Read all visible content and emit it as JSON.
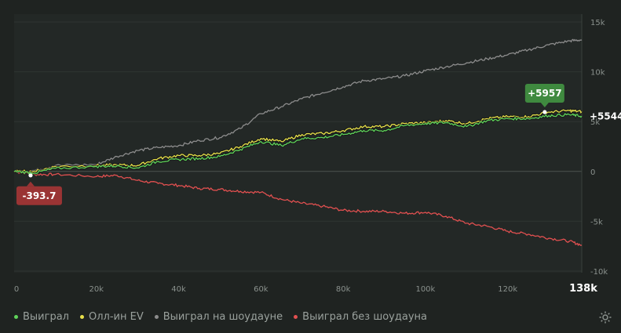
{
  "chart_data": {
    "type": "line",
    "x_ticks": [
      "0",
      "20k",
      "40k",
      "60k",
      "80k",
      "100k",
      "120k",
      "138k"
    ],
    "y_ticks": [
      "15k",
      "10k",
      "5k",
      "0",
      "-5k",
      "-10k"
    ],
    "xlim": [
      0,
      138000
    ],
    "ylim": [
      -10000,
      15000
    ],
    "grid": true,
    "legend_position": "bottom-left",
    "series": [
      {
        "name": "Выиграл",
        "color": "#5fd35a",
        "x": [
          0,
          5000,
          10000,
          20000,
          25000,
          30000,
          35000,
          40000,
          45000,
          50000,
          55000,
          60000,
          65000,
          70000,
          75000,
          80000,
          85000,
          90000,
          95000,
          100000,
          105000,
          110000,
          115000,
          120000,
          125000,
          130000,
          135000,
          138000
        ],
        "y": [
          0,
          -150,
          300,
          500,
          550,
          350,
          1000,
          1200,
          1300,
          1500,
          2200,
          3000,
          2600,
          3300,
          3400,
          3700,
          4100,
          4100,
          4600,
          4800,
          4900,
          4500,
          5100,
          5300,
          5300,
          5600,
          5700,
          5544
        ]
      },
      {
        "name": "Олл-ин EV",
        "color": "#e8e04a",
        "x": [
          0,
          5000,
          10000,
          20000,
          25000,
          30000,
          35000,
          40000,
          45000,
          50000,
          55000,
          60000,
          65000,
          70000,
          75000,
          80000,
          85000,
          90000,
          95000,
          100000,
          105000,
          110000,
          115000,
          120000,
          125000,
          130000,
          135000,
          138000
        ],
        "y": [
          0,
          0,
          500,
          600,
          650,
          600,
          1300,
          1600,
          1600,
          1800,
          2500,
          3300,
          3000,
          3700,
          3800,
          4100,
          4500,
          4500,
          4800,
          4900,
          5100,
          4800,
          5300,
          5500,
          5500,
          5957,
          6100,
          6000
        ]
      },
      {
        "name": "Выиграл на шоудауне",
        "color": "#8c8c8c",
        "x": [
          0,
          5000,
          10000,
          20000,
          25000,
          30000,
          35000,
          40000,
          45000,
          50000,
          55000,
          60000,
          65000,
          70000,
          75000,
          80000,
          85000,
          90000,
          95000,
          100000,
          105000,
          110000,
          115000,
          120000,
          125000,
          130000,
          135000,
          138000
        ],
        "y": [
          0,
          100,
          600,
          700,
          1500,
          2100,
          2400,
          2600,
          3100,
          3400,
          4300,
          5800,
          6500,
          7300,
          7900,
          8500,
          9100,
          9300,
          9600,
          10100,
          10500,
          10900,
          11300,
          11700,
          12200,
          12700,
          13100,
          13200
        ]
      },
      {
        "name": "Выиграл без шоудауна",
        "color": "#e25050",
        "x": [
          0,
          5000,
          10000,
          20000,
          25000,
          30000,
          35000,
          40000,
          45000,
          50000,
          55000,
          60000,
          65000,
          70000,
          75000,
          80000,
          85000,
          90000,
          95000,
          100000,
          105000,
          110000,
          115000,
          120000,
          125000,
          130000,
          135000,
          138000
        ],
        "y": [
          0,
          -300,
          -300,
          -500,
          -400,
          -900,
          -1200,
          -1400,
          -1700,
          -1800,
          -2000,
          -2100,
          -2800,
          -3200,
          -3500,
          -3900,
          -4000,
          -4000,
          -4200,
          -4100,
          -4500,
          -5200,
          -5500,
          -6000,
          -6300,
          -6700,
          -7000,
          -7400
        ]
      }
    ],
    "annotations": [
      {
        "text": "-393.7",
        "x": 4000,
        "y": -393.7,
        "color": "#9a3434",
        "placement": "below"
      },
      {
        "text": "+5957",
        "x": 129000,
        "y": 5957,
        "color": "#3f8a3f",
        "placement": "above"
      }
    ],
    "end_label": "+5544"
  },
  "toolbar": {
    "settings_icon": "gear-icon"
  }
}
